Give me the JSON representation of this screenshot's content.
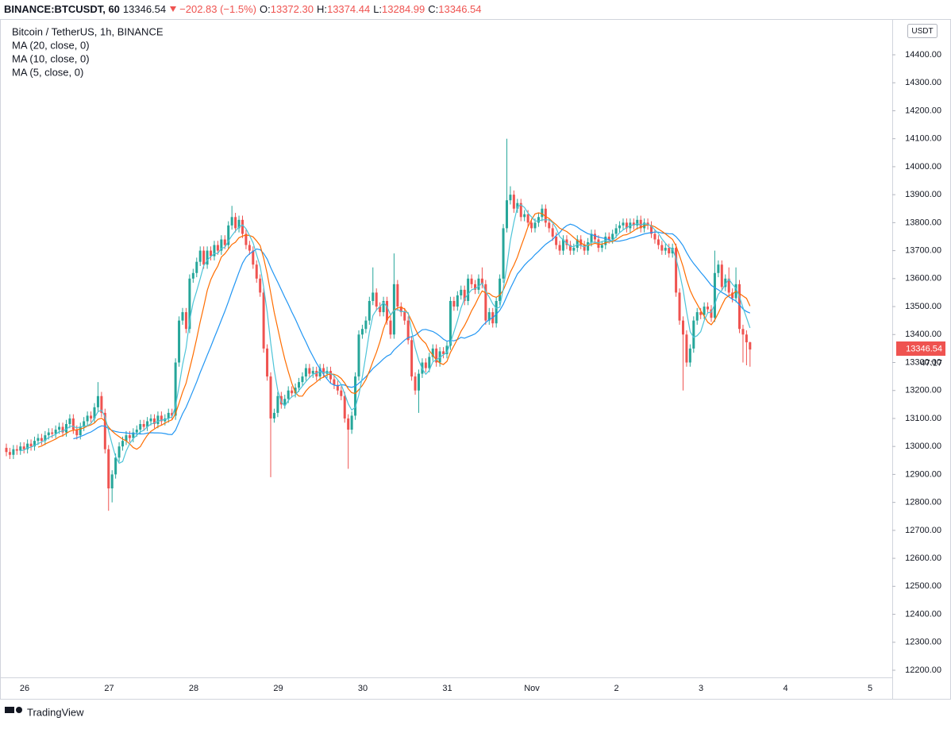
{
  "chart_data": {
    "type": "candlestick",
    "header": {
      "symbol": "BINANCE:BTCUSDT, 60",
      "last": "13346.54",
      "change": "−202.83 (−1.5%)",
      "ohlc": [
        {
          "label": "O:",
          "value": "13372.30"
        },
        {
          "label": "H:",
          "value": "13374.44"
        },
        {
          "label": "L:",
          "value": "13284.99"
        },
        {
          "label": "C:",
          "value": "13346.54"
        }
      ]
    },
    "title": "Bitcoin / TetherUS, 1h, BINANCE",
    "currency": "USDT",
    "last_price_label": "13346.54",
    "countdown": "47:17",
    "footer": "TradingView",
    "up_color": "#26a69a",
    "down_color": "#ef5350",
    "moving_averages": [
      {
        "name": "MA (20, close, 0)",
        "period": 20,
        "color": "#2196f3"
      },
      {
        "name": "MA (10, close, 0)",
        "period": 10,
        "color": "#ff6d00"
      },
      {
        "name": "MA (5, close, 0)",
        "period": 5,
        "color": "#4dc4d8"
      }
    ],
    "xtick_labels": [
      "26",
      "27",
      "28",
      "29",
      "30",
      "31",
      "Nov",
      "2",
      "3",
      "4",
      "5"
    ],
    "ylim": [
      12200,
      14400
    ],
    "yticks": [
      {
        "value": 12200,
        "label": "12200.00"
      },
      {
        "value": 12300,
        "label": "12300.00"
      },
      {
        "value": 12400,
        "label": "12400.00"
      },
      {
        "value": 12500,
        "label": "12500.00"
      },
      {
        "value": 12600,
        "label": "12600.00"
      },
      {
        "value": 12700,
        "label": "12700.00"
      },
      {
        "value": 12800,
        "label": "12800.00"
      },
      {
        "value": 12900,
        "label": "12900.00"
      },
      {
        "value": 13000,
        "label": "13000.00"
      },
      {
        "value": 13100,
        "label": "13100.00"
      },
      {
        "value": 13200,
        "label": "13200.00"
      },
      {
        "value": 13300,
        "label": "13300.00"
      },
      {
        "value": 13400,
        "label": "13400.00"
      },
      {
        "value": 13500,
        "label": "13500.00"
      },
      {
        "value": 13600,
        "label": "13600.00"
      },
      {
        "value": 13700,
        "label": "13700.00"
      },
      {
        "value": 13800,
        "label": "13800.00"
      },
      {
        "value": 13900,
        "label": "13900.00"
      },
      {
        "value": 14000,
        "label": "14000.00"
      },
      {
        "value": 14100,
        "label": "14100.00"
      },
      {
        "value": 14200,
        "label": "14200.00"
      },
      {
        "value": 14300,
        "label": "14300.00"
      },
      {
        "value": 14400,
        "label": "14400.00"
      }
    ],
    "grid": false,
    "candles": [
      [
        12995,
        13010,
        12965,
        12980
      ],
      [
        12980,
        12995,
        12955,
        12970
      ],
      [
        12970,
        13005,
        12955,
        12990
      ],
      [
        12990,
        13005,
        12970,
        12985
      ],
      [
        12985,
        13015,
        12970,
        13000
      ],
      [
        13000,
        13015,
        12975,
        12990
      ],
      [
        12990,
        13025,
        12975,
        13010
      ],
      [
        13010,
        13025,
        12985,
        13000
      ],
      [
        13000,
        13035,
        12985,
        13020
      ],
      [
        13020,
        13045,
        13005,
        13030
      ],
      [
        13030,
        13045,
        13005,
        13020
      ],
      [
        13020,
        13055,
        13005,
        13040
      ],
      [
        13040,
        13065,
        13025,
        13050
      ],
      [
        13050,
        13065,
        13030,
        13045
      ],
      [
        13045,
        13075,
        13030,
        13060
      ],
      [
        13060,
        13085,
        13045,
        13070
      ],
      [
        13070,
        13085,
        13035,
        13050
      ],
      [
        13050,
        13095,
        13035,
        13080
      ],
      [
        13080,
        13115,
        13065,
        13100
      ],
      [
        13100,
        13115,
        13045,
        13060
      ],
      [
        13060,
        13075,
        13025,
        13040
      ],
      [
        13040,
        13085,
        13025,
        13070
      ],
      [
        13070,
        13105,
        13055,
        13090
      ],
      [
        13090,
        13125,
        13075,
        13110
      ],
      [
        13110,
        13125,
        13085,
        13100
      ],
      [
        13100,
        13155,
        13085,
        13140
      ],
      [
        13140,
        13230,
        13125,
        13180
      ],
      [
        13180,
        13195,
        13105,
        13120
      ],
      [
        13120,
        13135,
        12975,
        12990
      ],
      [
        12990,
        13005,
        12770,
        12850
      ],
      [
        12850,
        12915,
        12800,
        12900
      ],
      [
        12900,
        12975,
        12885,
        12960
      ],
      [
        12960,
        13015,
        12945,
        13000
      ],
      [
        13000,
        13035,
        12985,
        13020
      ],
      [
        13020,
        13055,
        13005,
        13040
      ],
      [
        13040,
        13055,
        13015,
        13030
      ],
      [
        13030,
        13065,
        13015,
        13050
      ],
      [
        13050,
        13075,
        13035,
        13060
      ],
      [
        13060,
        13095,
        13045,
        13080
      ],
      [
        13080,
        13095,
        13055,
        13070
      ],
      [
        13070,
        13105,
        13055,
        13090
      ],
      [
        13090,
        13115,
        13075,
        13100
      ],
      [
        13100,
        13115,
        13065,
        13080
      ],
      [
        13080,
        13125,
        13065,
        13110
      ],
      [
        13110,
        13125,
        13075,
        13090
      ],
      [
        13090,
        13115,
        13075,
        13100
      ],
      [
        13100,
        13135,
        13085,
        13120
      ],
      [
        13120,
        13135,
        13095,
        13110
      ],
      [
        13110,
        13315,
        13095,
        13300
      ],
      [
        13300,
        13465,
        13285,
        13450
      ],
      [
        13450,
        13495,
        13435,
        13480
      ],
      [
        13480,
        13495,
        13405,
        13420
      ],
      [
        13420,
        13615,
        13405,
        13600
      ],
      [
        13600,
        13635,
        13585,
        13620
      ],
      [
        13620,
        13675,
        13605,
        13660
      ],
      [
        13660,
        13715,
        13645,
        13700
      ],
      [
        13700,
        13715,
        13635,
        13650
      ],
      [
        13650,
        13715,
        13635,
        13700
      ],
      [
        13700,
        13715,
        13665,
        13680
      ],
      [
        13680,
        13735,
        13665,
        13720
      ],
      [
        13720,
        13735,
        13685,
        13700
      ],
      [
        13700,
        13755,
        13685,
        13740
      ],
      [
        13740,
        13755,
        13705,
        13720
      ],
      [
        13720,
        13805,
        13705,
        13790
      ],
      [
        13790,
        13860,
        13775,
        13820
      ],
      [
        13820,
        13835,
        13765,
        13780
      ],
      [
        13780,
        13825,
        13765,
        13810
      ],
      [
        13810,
        13825,
        13745,
        13760
      ],
      [
        13760,
        13775,
        13705,
        13720
      ],
      [
        13720,
        13735,
        13685,
        13700
      ],
      [
        13700,
        13715,
        13635,
        13650
      ],
      [
        13650,
        13665,
        13585,
        13600
      ],
      [
        13600,
        13615,
        13535,
        13550
      ],
      [
        13550,
        13565,
        13335,
        13350
      ],
      [
        13350,
        13365,
        13235,
        13250
      ],
      [
        13250,
        13265,
        12890,
        13100
      ],
      [
        13100,
        13135,
        13085,
        13120
      ],
      [
        13120,
        13195,
        13105,
        13180
      ],
      [
        13180,
        13195,
        13135,
        13150
      ],
      [
        13150,
        13185,
        13135,
        13170
      ],
      [
        13170,
        13215,
        13155,
        13200
      ],
      [
        13200,
        13215,
        13175,
        13190
      ],
      [
        13190,
        13225,
        13175,
        13210
      ],
      [
        13210,
        13245,
        13195,
        13230
      ],
      [
        13230,
        13265,
        13215,
        13250
      ],
      [
        13250,
        13295,
        13235,
        13280
      ],
      [
        13280,
        13295,
        13245,
        13260
      ],
      [
        13260,
        13285,
        13245,
        13270
      ],
      [
        13270,
        13285,
        13235,
        13250
      ],
      [
        13250,
        13295,
        13235,
        13280
      ],
      [
        13280,
        13295,
        13245,
        13260
      ],
      [
        13260,
        13285,
        13245,
        13270
      ],
      [
        13270,
        13285,
        13225,
        13240
      ],
      [
        13240,
        13255,
        13205,
        13220
      ],
      [
        13220,
        13235,
        13185,
        13200
      ],
      [
        13200,
        13215,
        13165,
        13180
      ],
      [
        13180,
        13195,
        13085,
        13100
      ],
      [
        13100,
        13115,
        12920,
        13060
      ],
      [
        13060,
        13125,
        13045,
        13110
      ],
      [
        13110,
        13265,
        13095,
        13250
      ],
      [
        13250,
        13415,
        13235,
        13400
      ],
      [
        13400,
        13435,
        13385,
        13420
      ],
      [
        13420,
        13465,
        13405,
        13450
      ],
      [
        13450,
        13535,
        13435,
        13520
      ],
      [
        13520,
        13640,
        13505,
        13550
      ],
      [
        13550,
        13565,
        13485,
        13500
      ],
      [
        13500,
        13515,
        13465,
        13480
      ],
      [
        13480,
        13535,
        13465,
        13520
      ],
      [
        13520,
        13535,
        13435,
        13450
      ],
      [
        13450,
        13465,
        13385,
        13400
      ],
      [
        13400,
        13690,
        13385,
        13580
      ],
      [
        13580,
        13595,
        13485,
        13500
      ],
      [
        13500,
        13515,
        13465,
        13480
      ],
      [
        13480,
        13495,
        13435,
        13450
      ],
      [
        13450,
        13465,
        13365,
        13380
      ],
      [
        13380,
        13395,
        13235,
        13250
      ],
      [
        13250,
        13265,
        13185,
        13200
      ],
      [
        13200,
        13275,
        13120,
        13260
      ],
      [
        13260,
        13315,
        13245,
        13300
      ],
      [
        13300,
        13315,
        13265,
        13280
      ],
      [
        13280,
        13335,
        13265,
        13320
      ],
      [
        13320,
        13365,
        13305,
        13350
      ],
      [
        13350,
        13365,
        13285,
        13300
      ],
      [
        13300,
        13355,
        13285,
        13340
      ],
      [
        13340,
        13355,
        13315,
        13330
      ],
      [
        13330,
        13375,
        13315,
        13360
      ],
      [
        13360,
        13535,
        13345,
        13520
      ],
      [
        13520,
        13535,
        13485,
        13500
      ],
      [
        13500,
        13555,
        13485,
        13540
      ],
      [
        13540,
        13575,
        13525,
        13560
      ],
      [
        13560,
        13575,
        13505,
        13520
      ],
      [
        13520,
        13615,
        13505,
        13600
      ],
      [
        13600,
        13615,
        13565,
        13580
      ],
      [
        13580,
        13595,
        13545,
        13560
      ],
      [
        13560,
        13615,
        13545,
        13600
      ],
      [
        13600,
        13640,
        13565,
        13580
      ],
      [
        13580,
        13595,
        13435,
        13450
      ],
      [
        13450,
        13495,
        13435,
        13480
      ],
      [
        13480,
        13495,
        13425,
        13440
      ],
      [
        13440,
        13535,
        13425,
        13520
      ],
      [
        13520,
        13615,
        13505,
        13600
      ],
      [
        13600,
        13795,
        13585,
        13780
      ],
      [
        13780,
        14100,
        13765,
        13880
      ],
      [
        13880,
        13930,
        13865,
        13900
      ],
      [
        13900,
        13915,
        13835,
        13850
      ],
      [
        13850,
        13885,
        13835,
        13870
      ],
      [
        13870,
        13885,
        13805,
        13820
      ],
      [
        13820,
        13845,
        13805,
        13830
      ],
      [
        13830,
        13845,
        13785,
        13800
      ],
      [
        13800,
        13815,
        13765,
        13780
      ],
      [
        13780,
        13815,
        13765,
        13800
      ],
      [
        13800,
        13835,
        13785,
        13820
      ],
      [
        13820,
        13865,
        13805,
        13850
      ],
      [
        13850,
        13865,
        13785,
        13800
      ],
      [
        13800,
        13815,
        13765,
        13780
      ],
      [
        13780,
        13795,
        13735,
        13750
      ],
      [
        13750,
        13765,
        13705,
        13720
      ],
      [
        13720,
        13735,
        13685,
        13700
      ],
      [
        13700,
        13755,
        13685,
        13740
      ],
      [
        13740,
        13755,
        13705,
        13720
      ],
      [
        13720,
        13735,
        13685,
        13700
      ],
      [
        13700,
        13725,
        13685,
        13710
      ],
      [
        13710,
        13755,
        13695,
        13740
      ],
      [
        13740,
        13755,
        13705,
        13720
      ],
      [
        13720,
        13735,
        13685,
        13700
      ],
      [
        13700,
        13745,
        13685,
        13730
      ],
      [
        13730,
        13775,
        13715,
        13760
      ],
      [
        13760,
        13775,
        13725,
        13740
      ],
      [
        13740,
        13755,
        13695,
        13710
      ],
      [
        13710,
        13735,
        13695,
        13720
      ],
      [
        13720,
        13765,
        13705,
        13750
      ],
      [
        13750,
        13765,
        13725,
        13740
      ],
      [
        13740,
        13775,
        13725,
        13760
      ],
      [
        13760,
        13795,
        13745,
        13780
      ],
      [
        13780,
        13805,
        13765,
        13790
      ],
      [
        13790,
        13815,
        13775,
        13800
      ],
      [
        13800,
        13815,
        13765,
        13780
      ],
      [
        13780,
        13815,
        13765,
        13800
      ],
      [
        13800,
        13815,
        13775,
        13790
      ],
      [
        13790,
        13825,
        13775,
        13810
      ],
      [
        13810,
        13825,
        13765,
        13780
      ],
      [
        13780,
        13815,
        13765,
        13800
      ],
      [
        13800,
        13815,
        13775,
        13790
      ],
      [
        13790,
        13805,
        13745,
        13760
      ],
      [
        13760,
        13775,
        13725,
        13740
      ],
      [
        13740,
        13755,
        13705,
        13720
      ],
      [
        13720,
        13735,
        13685,
        13700
      ],
      [
        13700,
        13725,
        13685,
        13710
      ],
      [
        13710,
        13725,
        13675,
        13690
      ],
      [
        13690,
        13725,
        13675,
        13710
      ],
      [
        13710,
        13725,
        13535,
        13550
      ],
      [
        13550,
        13565,
        13435,
        13450
      ],
      [
        13450,
        13465,
        13200,
        13400
      ],
      [
        13400,
        13415,
        13285,
        13300
      ],
      [
        13300,
        13365,
        13285,
        13350
      ],
      [
        13350,
        13465,
        13335,
        13450
      ],
      [
        13450,
        13495,
        13435,
        13480
      ],
      [
        13480,
        13495,
        13455,
        13470
      ],
      [
        13470,
        13515,
        13455,
        13500
      ],
      [
        13500,
        13515,
        13475,
        13490
      ],
      [
        13490,
        13505,
        13445,
        13460
      ],
      [
        13460,
        13700,
        13445,
        13620
      ],
      [
        13620,
        13665,
        13605,
        13650
      ],
      [
        13650,
        13665,
        13555,
        13570
      ],
      [
        13570,
        13615,
        13555,
        13600
      ],
      [
        13600,
        13640,
        13535,
        13550
      ],
      [
        13550,
        13565,
        13515,
        13530
      ],
      [
        13530,
        13640,
        13515,
        13580
      ],
      [
        13580,
        13595,
        13405,
        13420
      ],
      [
        13420,
        13435,
        13300,
        13400
      ],
      [
        13400,
        13415,
        13290,
        13372.3
      ],
      [
        13372.3,
        13374.44,
        13284.99,
        13346.54
      ]
    ]
  }
}
